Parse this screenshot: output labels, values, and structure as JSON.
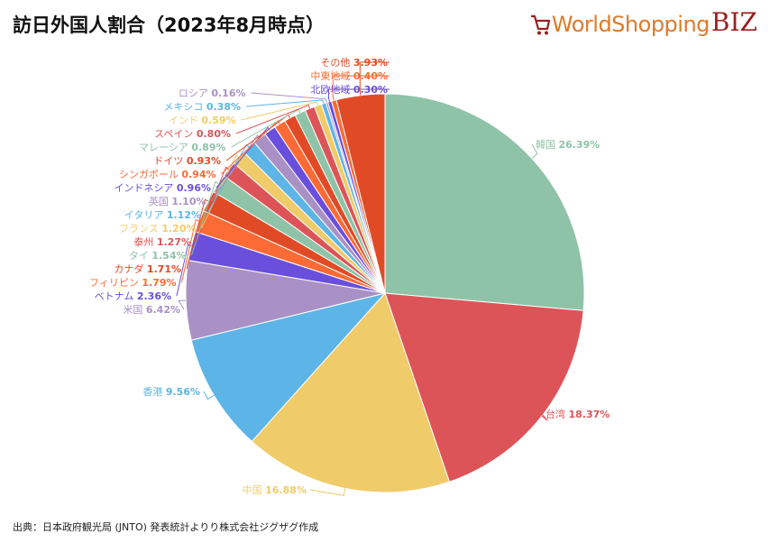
{
  "title": "訪日外国人割合（2023年8月時点）",
  "logo": {
    "brand": "WorldShopping",
    "suffix": "BIZ"
  },
  "source": "出典：日本政府観光局 (JNTO) 発表統計よりり株式会社ジグザグ作成",
  "chart_data": {
    "type": "pie",
    "title": "訪日外国人割合（2023年8月時点）",
    "unit": "%",
    "slices": [
      {
        "label": "韓国",
        "value": 26.39,
        "display": "26.39%",
        "color": "#8fc3a7"
      },
      {
        "label": "台湾",
        "value": 18.37,
        "display": "18.37%",
        "color": "#dd5458"
      },
      {
        "label": "中国",
        "value": 16.88,
        "display": "16.88%",
        "color": "#f0cb6a"
      },
      {
        "label": "香港",
        "value": 9.56,
        "display": "9.56%",
        "color": "#5db4e6"
      },
      {
        "label": "米国",
        "value": 6.42,
        "display": "6.42%",
        "color": "#a991c6"
      },
      {
        "label": "ベトナム",
        "value": 2.36,
        "display": "2.36%",
        "color": "#6a4fdc"
      },
      {
        "label": "フィリピン",
        "value": 1.79,
        "display": "1.79%",
        "color": "#fc6b35"
      },
      {
        "label": "カナダ",
        "value": 1.71,
        "display": "1.71%",
        "color": "#e04b26"
      },
      {
        "label": "タイ",
        "value": 1.54,
        "display": "1.54%",
        "color": "#8fc3a7"
      },
      {
        "label": "泰州",
        "value": 1.27,
        "display": "1.27%",
        "color": "#dd5458"
      },
      {
        "label": "フランス",
        "value": 1.2,
        "display": "1.20%",
        "color": "#f0cb6a"
      },
      {
        "label": "イタリア",
        "value": 1.12,
        "display": "1.12%",
        "color": "#5db4e6"
      },
      {
        "label": "英国",
        "value": 1.1,
        "display": "1.10%",
        "color": "#a991c6"
      },
      {
        "label": "インドネシア",
        "value": 0.96,
        "display": "0.96%",
        "color": "#6a4fdc"
      },
      {
        "label": "シンガポール",
        "value": 0.94,
        "display": "0.94%",
        "color": "#fc6b35"
      },
      {
        "label": "ドイツ",
        "value": 0.93,
        "display": "0.93%",
        "color": "#e04b26"
      },
      {
        "label": "マレーシア",
        "value": 0.89,
        "display": "0.89%",
        "color": "#8fc3a7"
      },
      {
        "label": "スペイン",
        "value": 0.8,
        "display": "0.80%",
        "color": "#dd5458"
      },
      {
        "label": "インド",
        "value": 0.59,
        "display": "0.59%",
        "color": "#f0cb6a"
      },
      {
        "label": "メキシコ",
        "value": 0.38,
        "display": "0.38%",
        "color": "#5db4e6"
      },
      {
        "label": "ロシア",
        "value": 0.16,
        "display": "0.16%",
        "color": "#a991c6"
      },
      {
        "label": "北欧地域",
        "value": 0.3,
        "display": "0.30%",
        "color": "#6a4fdc"
      },
      {
        "label": "中東地域",
        "value": 0.4,
        "display": "0.40%",
        "color": "#fc6b35"
      },
      {
        "label": "その他",
        "value": 3.93,
        "display": "3.93%",
        "color": "#e04b26"
      }
    ]
  }
}
